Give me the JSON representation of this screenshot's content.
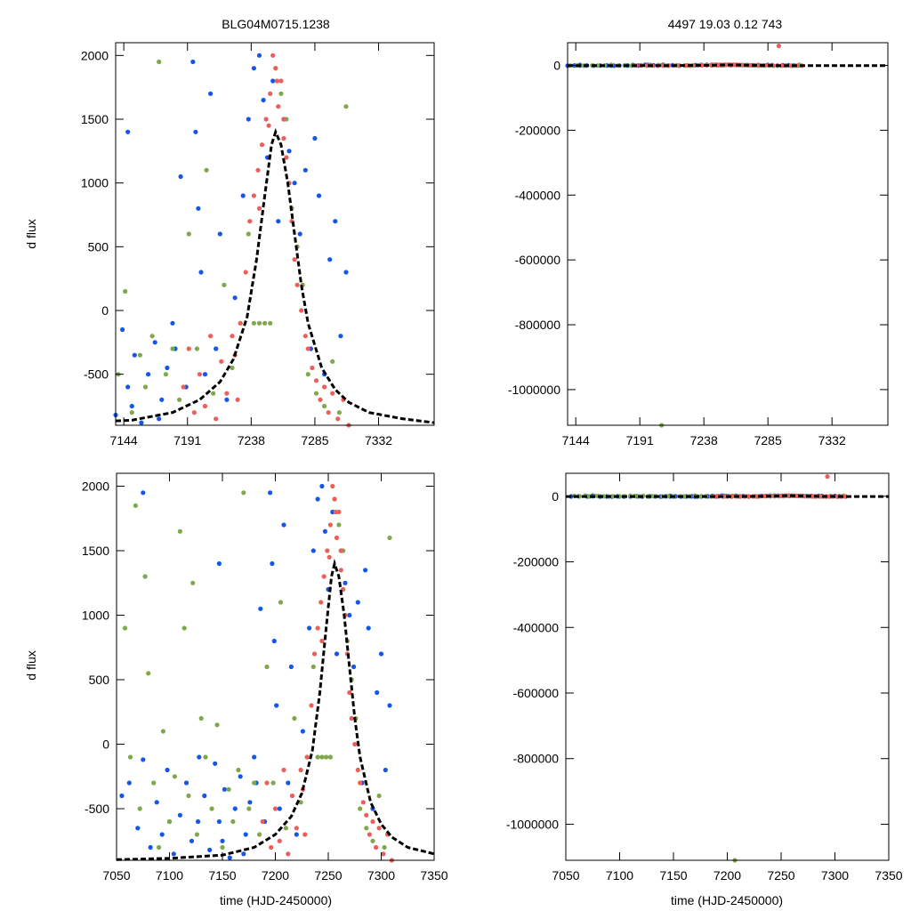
{
  "chart_data": {
    "type": "scatter",
    "titles": [
      "BLG04M0715.1238",
      "4497  19.03  0.12  743"
    ],
    "ylabel": "d flux",
    "xlabel": "time (HJD-2450000)",
    "colors": {
      "blue": "#1556e8",
      "green": "#7fa84a",
      "red": "#ea5f5a",
      "model": "#000000"
    },
    "panels": [
      {
        "id": "top-left",
        "xlim": [
          7138,
          7373
        ],
        "ylim": [
          -900,
          2100
        ],
        "xticks": [
          7144,
          7191,
          7238,
          7285,
          7332
        ],
        "yticks": [
          2000,
          1500,
          1000,
          500,
          0,
          -500
        ],
        "show_ylabel": true,
        "show_xlabel": false
      },
      {
        "id": "top-right",
        "xlim": [
          7138,
          7373
        ],
        "ylim": [
          -1110000,
          70000
        ],
        "xticks": [
          7144,
          7191,
          7238,
          7285,
          7332
        ],
        "yticks": [
          0,
          -200000,
          -400000,
          -600000,
          -800000,
          -1000000
        ],
        "show_ylabel": false,
        "show_xlabel": false
      },
      {
        "id": "bottom-left",
        "xlim": [
          7050,
          7350
        ],
        "ylim": [
          -900,
          2100
        ],
        "xticks": [
          7050,
          7100,
          7150,
          7200,
          7250,
          7300,
          7350
        ],
        "yticks": [
          2000,
          1500,
          1000,
          500,
          0,
          -500
        ],
        "show_ylabel": true,
        "show_xlabel": true
      },
      {
        "id": "bottom-right",
        "xlim": [
          7050,
          7350
        ],
        "ylim": [
          -1110000,
          70000
        ],
        "xticks": [
          7050,
          7100,
          7150,
          7200,
          7250,
          7300,
          7350
        ],
        "yticks": [
          0,
          -200000,
          -400000,
          -600000,
          -800000,
          -1000000
        ],
        "show_ylabel": false,
        "show_xlabel": true
      }
    ],
    "series": [
      {
        "name": "blue",
        "points": [
          [
            7055,
            -400
          ],
          [
            7062,
            -300
          ],
          [
            7070,
            -650
          ],
          [
            7075,
            1950
          ],
          [
            7075,
            -120
          ],
          [
            7082,
            -800
          ],
          [
            7088,
            -450
          ],
          [
            7093,
            -700
          ],
          [
            7098,
            -200
          ],
          [
            7100,
            -600
          ],
          [
            7104,
            -850
          ],
          [
            7110,
            -550
          ],
          [
            7116,
            -300
          ],
          [
            7121,
            -750
          ],
          [
            7127,
            -600
          ],
          [
            7128,
            -100
          ],
          [
            7133,
            -400
          ],
          [
            7138,
            -820
          ],
          [
            7143,
            -150
          ],
          [
            7147,
            1400
          ],
          [
            7147,
            -600
          ],
          [
            7150,
            -750
          ],
          [
            7152,
            -350
          ],
          [
            7157,
            -880
          ],
          [
            7162,
            -500
          ],
          [
            7167,
            -250
          ],
          [
            7170,
            -850
          ],
          [
            7172,
            -700
          ],
          [
            7176,
            -450
          ],
          [
            7180,
            -100
          ],
          [
            7182,
            -300
          ],
          [
            7186,
            1050
          ],
          [
            7190,
            -600
          ],
          [
            7195,
            1950
          ],
          [
            7197,
            1400
          ],
          [
            7199,
            800
          ],
          [
            7201,
            300
          ],
          [
            7204,
            -500
          ],
          [
            7208,
            1700
          ],
          [
            7212,
            -300
          ],
          [
            7215,
            600
          ],
          [
            7220,
            -700
          ],
          [
            7226,
            100
          ],
          [
            7232,
            900
          ],
          [
            7236,
            1500
          ],
          [
            7240,
            1900
          ],
          [
            7244,
            2000
          ],
          [
            7247,
            1650
          ],
          [
            7250,
            1200
          ],
          [
            7254,
            1800
          ],
          [
            7258,
            700
          ],
          [
            7262,
            1500
          ],
          [
            7266,
            1250
          ],
          [
            7270,
            1000
          ],
          [
            7274,
            600
          ],
          [
            7278,
            1100
          ],
          [
            7282,
            -300
          ],
          [
            7285,
            1350
          ],
          [
            7288,
            900
          ],
          [
            7292,
            -500
          ],
          [
            7296,
            400
          ],
          [
            7300,
            700
          ],
          [
            7304,
            -200
          ],
          [
            7308,
            300
          ]
        ]
      },
      {
        "name": "green",
        "points": [
          [
            7058,
            900
          ],
          [
            7063,
            -100
          ],
          [
            7068,
            1850
          ],
          [
            7072,
            -500
          ],
          [
            7077,
            1300
          ],
          [
            7080,
            550
          ],
          [
            7085,
            -300
          ],
          [
            7090,
            -800
          ],
          [
            7094,
            100
          ],
          [
            7100,
            -600
          ],
          [
            7105,
            -250
          ],
          [
            7110,
            1650
          ],
          [
            7114,
            900
          ],
          [
            7118,
            -400
          ],
          [
            7122,
            1250
          ],
          [
            7126,
            -700
          ],
          [
            7130,
            200
          ],
          [
            7134,
            -100
          ],
          [
            7140,
            -500
          ],
          [
            7145,
            150
          ],
          [
            7150,
            -800
          ],
          [
            7156,
            -350
          ],
          [
            7160,
            -600
          ],
          [
            7165,
            -200
          ],
          [
            7170,
            1950
          ],
          [
            7175,
            -500
          ],
          [
            7180,
            -300
          ],
          [
            7185,
            -700
          ],
          [
            7192,
            600
          ],
          [
            7198,
            -300
          ],
          [
            7205,
            1100
          ],
          [
            7207,
            -1110000
          ],
          [
            7210,
            -650
          ],
          [
            7218,
            200
          ],
          [
            7224,
            -450
          ],
          [
            7230,
            -100
          ],
          [
            7236,
            600
          ],
          [
            7240,
            -100
          ],
          [
            7244,
            -100
          ],
          [
            7248,
            -100
          ],
          [
            7252,
            -100
          ],
          [
            7256,
            1900
          ],
          [
            7260,
            1700
          ],
          [
            7264,
            1500
          ],
          [
            7268,
            800
          ],
          [
            7272,
            500
          ],
          [
            7276,
            200
          ],
          [
            7280,
            -500
          ],
          [
            7286,
            -650
          ],
          [
            7292,
            -750
          ],
          [
            7298,
            -400
          ],
          [
            7303,
            -800
          ],
          [
            7308,
            1600
          ]
        ]
      },
      {
        "name": "red",
        "points": [
          [
            7188,
            -600
          ],
          [
            7192,
            -300
          ],
          [
            7196,
            -800
          ],
          [
            7200,
            -500
          ],
          [
            7204,
            -750
          ],
          [
            7208,
            -200
          ],
          [
            7212,
            -850
          ],
          [
            7216,
            -400
          ],
          [
            7220,
            -650
          ],
          [
            7224,
            -200
          ],
          [
            7226,
            -350
          ],
          [
            7228,
            -700
          ],
          [
            7230,
            -100
          ],
          [
            7234,
            300
          ],
          [
            7237,
            700
          ],
          [
            7240,
            900
          ],
          [
            7243,
            1100
          ],
          [
            7244,
            800
          ],
          [
            7246,
            1300
          ],
          [
            7249,
            1500
          ],
          [
            7251,
            1450
          ],
          [
            7252,
            1700
          ],
          [
            7254,
            2000
          ],
          [
            7256,
            1900
          ],
          [
            7257,
            1800
          ],
          [
            7258,
            1600
          ],
          [
            7260,
            1800
          ],
          [
            7262,
            1500
          ],
          [
            7262,
            1350
          ],
          [
            7264,
            1200
          ],
          [
            7266,
            1000
          ],
          [
            7268,
            700
          ],
          [
            7270,
            400
          ],
          [
            7272,
            200
          ],
          [
            7275,
            0
          ],
          [
            7278,
            -200
          ],
          [
            7280,
            -300
          ],
          [
            7283,
            -450
          ],
          [
            7286,
            -550
          ],
          [
            7289,
            -700
          ],
          [
            7292,
            -600
          ],
          [
            7293,
            60000
          ],
          [
            7295,
            -800
          ],
          [
            7298,
            -650
          ],
          [
            7302,
            -850
          ],
          [
            7306,
            -700
          ],
          [
            7310,
            -900
          ]
        ]
      }
    ],
    "model_curve": [
      [
        7050,
        -895
      ],
      [
        7100,
        -885
      ],
      [
        7150,
        -860
      ],
      [
        7180,
        -800
      ],
      [
        7200,
        -700
      ],
      [
        7215,
        -560
      ],
      [
        7225,
        -380
      ],
      [
        7235,
        -50
      ],
      [
        7242,
        400
      ],
      [
        7248,
        900
      ],
      [
        7253,
        1300
      ],
      [
        7256,
        1400
      ],
      [
        7260,
        1300
      ],
      [
        7265,
        1000
      ],
      [
        7270,
        600
      ],
      [
        7275,
        200
      ],
      [
        7280,
        -100
      ],
      [
        7290,
        -450
      ],
      [
        7300,
        -620
      ],
      [
        7310,
        -720
      ],
      [
        7325,
        -800
      ],
      [
        7350,
        -850
      ],
      [
        7373,
        -880
      ]
    ]
  }
}
